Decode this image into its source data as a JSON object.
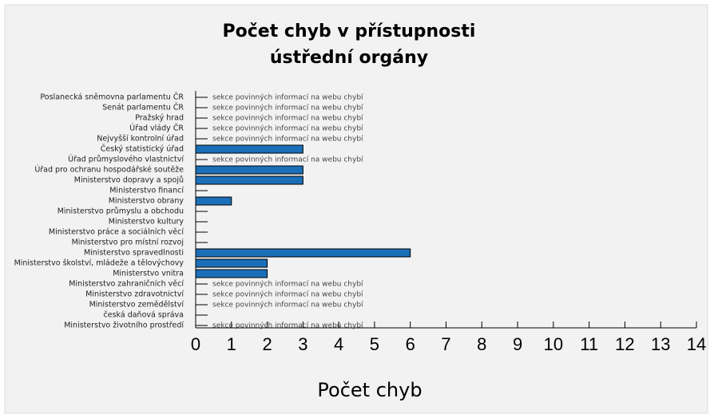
{
  "chart_data": {
    "type": "bar",
    "orientation": "horizontal",
    "title": "Počet chyb v přístupnosti",
    "subtitle": "ústřední orgány",
    "x_label": "Počet chyb",
    "categories": [
      "Poslanecká sněmovna parlamentu ČR",
      "Senát parlamentu ČR",
      "Pražský hrad",
      "Úřad vlády ČR",
      "Nejvyšší kontrolní úřad",
      "Český statistický úřad",
      "Úřad průmyslového vlastnictví",
      "Úřad pro ochranu hospodářské soutěže",
      "Ministerstvo dopravy a spojů",
      "Ministerstvo financí",
      "Ministerstvo obrany",
      "Ministerstvo průmyslu a obchodu",
      "Ministerstvo kultury",
      "Ministerstvo práce a sociálních věcí",
      "Ministerstvo pro místní rozvoj",
      "Ministerstvo spravedlnosti",
      "Ministerstvo školství, mládeže a tělovýchovy",
      "Ministerstvo vnitra",
      "Ministerstvo zahraničních věcí",
      "Ministerstvo zdravotnictví",
      "Ministerstvo zemědělství",
      "česká daňová správa",
      "Ministerstvo životního prostředí"
    ],
    "values": [
      null,
      null,
      null,
      null,
      null,
      3,
      null,
      3,
      3,
      0,
      1,
      0,
      0,
      0,
      0,
      6,
      2,
      2,
      null,
      null,
      null,
      0,
      null
    ],
    "notes": [
      "sekce povinných informací na webu chybí",
      "sekce povinných informací na webu chybí",
      "sekce povinných informací na webu chybí",
      "sekce povinných informací na webu chybí",
      "sekce povinných informací na webu chybí",
      null,
      "sekce povinných informací na webu chybí",
      null,
      null,
      null,
      null,
      null,
      null,
      null,
      null,
      null,
      null,
      null,
      "sekce povinných informací na webu chybí",
      "sekce povinných informací na webu chybí",
      "sekce povinných informací na webu chybí",
      null,
      "sekce povinných informací na webu chybí"
    ],
    "color": "#1a6fb8",
    "xlim": [
      0,
      14
    ],
    "xticks": [
      0,
      1,
      2,
      3,
      4,
      5,
      6,
      7,
      8,
      9,
      10,
      11,
      12,
      13,
      14
    ]
  }
}
